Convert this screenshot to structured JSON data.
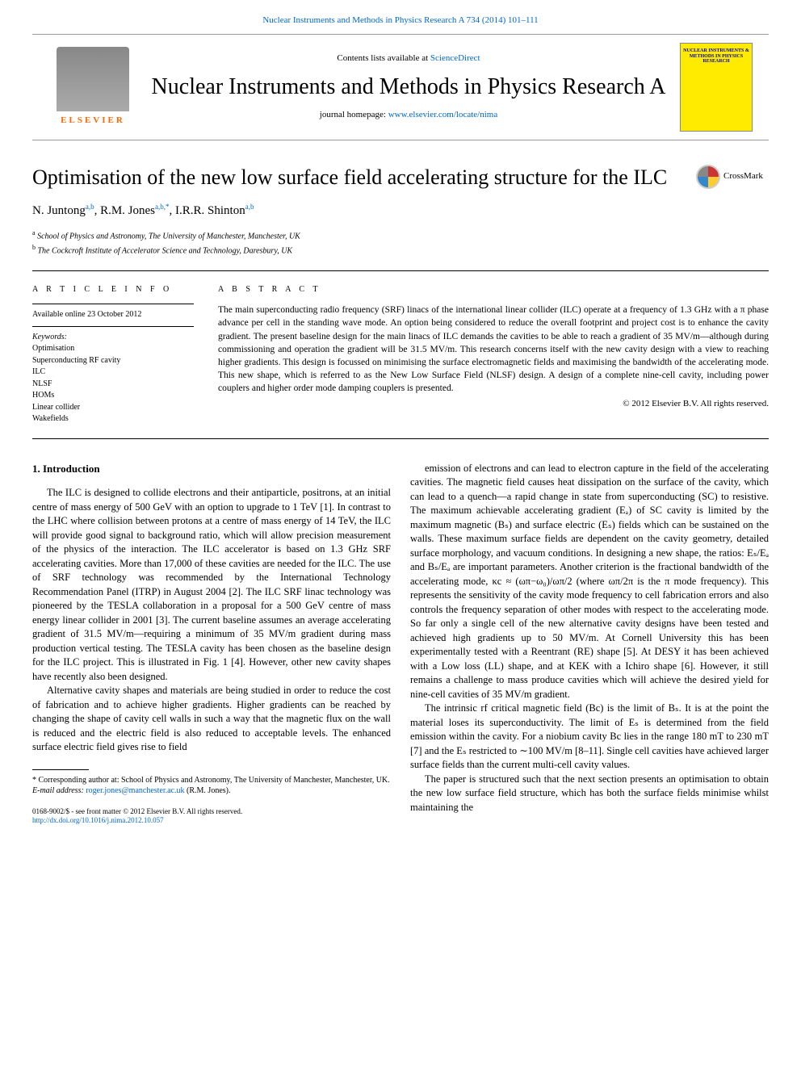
{
  "header": {
    "top_link": "Nuclear Instruments and Methods in Physics Research A 734 (2014) 101–111",
    "contents_prefix": "Contents lists available at ",
    "contents_link": "ScienceDirect",
    "journal_title": "Nuclear Instruments and Methods in Physics Research A",
    "homepage_prefix": "journal homepage: ",
    "homepage_link": "www.elsevier.com/locate/nima",
    "elsevier_label": "ELSEVIER",
    "badge_title": "NUCLEAR INSTRUMENTS & METHODS IN PHYSICS RESEARCH"
  },
  "article": {
    "title": "Optimisation of the new low surface field accelerating structure for the ILC",
    "crossmark_label": "CrossMark",
    "authors_html": "N. Juntong",
    "author1": "N. Juntong",
    "author1_aff": "a,b",
    "author2": "R.M. Jones",
    "author2_aff": "a,b,",
    "author2_star": "*",
    "author3": "I.R.R. Shinton",
    "author3_aff": "a,b",
    "affiliation_a": "School of Physics and Astronomy, The University of Manchester, Manchester, UK",
    "affiliation_b": "The Cockcroft Institute of Accelerator Science and Technology, Daresbury, UK"
  },
  "info": {
    "heading": "A R T I C L E   I N F O",
    "available": "Available online 23 October 2012",
    "keywords_label": "Keywords:",
    "keywords": [
      "Optimisation",
      "Superconducting RF cavity",
      "ILC",
      "NLSF",
      "HOMs",
      "Linear collider",
      "Wakefields"
    ]
  },
  "abstract": {
    "heading": "A B S T R A C T",
    "text": "The main superconducting radio frequency (SRF) linacs of the international linear collider (ILC) operate at a frequency of 1.3 GHz with a π phase advance per cell in the standing wave mode. An option being considered to reduce the overall footprint and project cost is to enhance the cavity gradient. The present baseline design for the main linacs of ILC demands the cavities to be able to reach a gradient of 35 MV/m—although during commissioning and operation the gradient will be 31.5 MV/m. This research concerns itself with the new cavity design with a view to reaching higher gradients. This design is focussed on minimising the surface electromagnetic fields and maximising the bandwidth of the accelerating mode. This new shape, which is referred to as the New Low Surface Field (NLSF) design. A design of a complete nine-cell cavity, including power couplers and higher order mode damping couplers is presented.",
    "copyright": "© 2012 Elsevier B.V. All rights reserved."
  },
  "body": {
    "section1_heading": "1.  Introduction",
    "col1_p1": "The ILC is designed to collide electrons and their antiparticle, positrons, at an initial centre of mass energy of 500 GeV with an option to upgrade to 1 TeV [1]. In contrast to the LHC where collision between protons at a centre of mass energy of 14 TeV, the ILC will provide good signal to background ratio, which will allow precision measurement of the physics of the interaction. The ILC accelerator is based on 1.3 GHz SRF accelerating cavities. More than 17,000 of these cavities are needed for the ILC. The use of SRF technology was recommended by the International Technology Recommendation Panel (ITRP) in August 2004 [2]. The ILC SRF linac technology was pioneered by the TESLA collaboration in a proposal for a 500 GeV centre of mass energy linear collider in 2001 [3]. The current baseline assumes an average accelerating gradient of 31.5 MV/m—requiring a minimum of 35 MV/m gradient during mass production vertical testing. The TESLA cavity has been chosen as the baseline design for the ILC project. This is illustrated in Fig. 1 [4]. However, other new cavity shapes have recently also been designed.",
    "col1_p2": "Alternative cavity shapes and materials are being studied in order to reduce the cost of fabrication and to achieve higher gradients. Higher gradients can be reached by changing the shape of cavity cell walls in such a way that the magnetic flux on the wall is reduced and the electric field is also reduced to acceptable levels. The enhanced surface electric field gives rise to field",
    "col2_p1": "emission of electrons and can lead to electron capture in the field of the accelerating cavities. The magnetic field causes heat dissipation on the surface of the cavity, which can lead to a quench—a rapid change in state from superconducting (SC) to resistive. The maximum achievable accelerating gradient (Eₐ) of SC cavity is limited by the maximum magnetic (Bₛ) and surface electric (Eₛ) fields which can be sustained on the walls. These maximum surface fields are dependent on the cavity geometry, detailed surface morphology, and vacuum conditions. In designing a new shape, the ratios: Eₛ/Eₐ and Bₛ/Eₐ are important parameters. Another criterion is the fractional bandwidth of the accelerating mode, κc ≈ (ωπ−ω₀)/ωπ/2 (where ωπ/2π is the π mode frequency). This represents the sensitivity of the cavity mode frequency to cell fabrication errors and also controls the frequency separation of other modes with respect to the accelerating mode. So far only a single cell of the new alternative cavity designs have been tested and achieved high gradients up to 50 MV/m. At Cornell University this has been experimentally tested with a Reentrant (RE) shape [5]. At DESY it has been achieved with a Low loss (LL) shape, and at KEK with a Ichiro shape [6]. However, it still remains a challenge to mass produce cavities which will achieve the desired yield for nine-cell cavities of 35 MV/m gradient.",
    "col2_p2": "The intrinsic rf critical magnetic field (Bc) is the limit of Bₛ. It is at the point the material loses its superconductivity. The limit of Eₛ is determined from the field emission within the cavity. For a niobium cavity Bc lies in the range 180 mT to 230 mT [7] and the Eₛ restricted to ∼100 MV/m [8–11]. Single cell cavities have achieved larger surface fields than the current multi-cell cavity values.",
    "col2_p3": "The paper is structured such that the next section presents an optimisation to obtain the new low surface field structure, which has both the surface fields minimise whilst maintaining the"
  },
  "footnotes": {
    "corresponding": "* Corresponding author at: School of Physics and Astronomy, The University of Manchester, Manchester, UK.",
    "email_label": "E-mail address: ",
    "email": "roger.jones@manchester.ac.uk",
    "email_name": " (R.M. Jones)."
  },
  "footer": {
    "issn": "0168-9002/$ - see front matter © 2012 Elsevier B.V. All rights reserved.",
    "doi": "http://dx.doi.org/10.1016/j.nima.2012.10.057"
  },
  "colors": {
    "link": "#0066cc",
    "elsevier_orange": "#ff6600",
    "badge_bg": "#ffeb00",
    "text": "#000000",
    "bg": "#ffffff"
  }
}
